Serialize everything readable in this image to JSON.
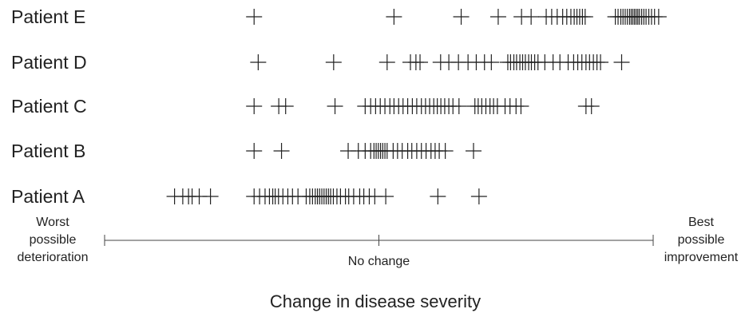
{
  "chart_data": {
    "type": "scatter",
    "xlabel": "Change in disease severity",
    "axis_labels": {
      "left": [
        "Worst",
        "possible",
        "deterioration"
      ],
      "middle": "No change",
      "right": [
        "Best",
        "possible",
        "improvement"
      ]
    },
    "xlim": [
      -1,
      1
    ],
    "marker": "+",
    "colors": {
      "marks": "#222222",
      "axis": "#444444",
      "text": "#222222"
    },
    "series": [
      {
        "name": "Patient A",
        "x": [
          -0.745,
          -0.715,
          -0.694,
          -0.681,
          -0.655,
          -0.614,
          -0.455,
          -0.435,
          -0.415,
          -0.399,
          -0.387,
          -0.378,
          -0.366,
          -0.35,
          -0.332,
          -0.315,
          -0.295,
          -0.265,
          -0.252,
          -0.242,
          -0.232,
          -0.224,
          -0.216,
          -0.208,
          -0.2,
          -0.192,
          -0.184,
          -0.176,
          -0.166,
          -0.153,
          -0.14,
          -0.122,
          -0.11,
          -0.092,
          -0.07,
          -0.055,
          -0.035,
          -0.015,
          0.025,
          0.215,
          0.365
        ]
      },
      {
        "name": "Patient B",
        "x": [
          -0.455,
          -0.355,
          -0.112,
          -0.075,
          -0.05,
          -0.03,
          -0.018,
          -0.01,
          -0.002,
          0.006,
          0.014,
          0.022,
          0.03,
          0.052,
          0.068,
          0.085,
          0.105,
          0.12,
          0.138,
          0.155,
          0.172,
          0.19,
          0.205,
          0.22,
          0.242,
          0.345
        ]
      },
      {
        "name": "Patient C",
        "x": [
          -0.455,
          -0.365,
          -0.34,
          -0.16,
          -0.05,
          -0.03,
          -0.012,
          0.005,
          0.022,
          0.04,
          0.055,
          0.072,
          0.088,
          0.105,
          0.122,
          0.138,
          0.155,
          0.17,
          0.185,
          0.2,
          0.213,
          0.226,
          0.24,
          0.255,
          0.27,
          0.292,
          0.35,
          0.362,
          0.375,
          0.39,
          0.405,
          0.418,
          0.432,
          0.46,
          0.478,
          0.5,
          0.518,
          0.755,
          0.775
        ]
      },
      {
        "name": "Patient D",
        "x": [
          -0.44,
          -0.165,
          0.03,
          0.115,
          0.135,
          0.15,
          0.225,
          0.255,
          0.29,
          0.325,
          0.355,
          0.385,
          0.41,
          0.47,
          0.48,
          0.492,
          0.502,
          0.514,
          0.524,
          0.534,
          0.546,
          0.556,
          0.568,
          0.58,
          0.605,
          0.635,
          0.66,
          0.69,
          0.71,
          0.725,
          0.74,
          0.755,
          0.768,
          0.782,
          0.795,
          0.808,
          0.885
        ]
      },
      {
        "name": "Patient E",
        "x": [
          -0.455,
          0.055,
          0.3,
          0.435,
          0.52,
          0.555,
          0.61,
          0.63,
          0.65,
          0.67,
          0.685,
          0.7,
          0.712,
          0.722,
          0.732,
          0.742,
          0.752,
          0.862,
          0.872,
          0.882,
          0.89,
          0.898,
          0.906,
          0.914,
          0.92,
          0.926,
          0.932,
          0.938,
          0.944,
          0.95,
          0.958,
          0.966,
          0.974,
          0.984,
          0.994,
          1.005,
          1.02
        ]
      }
    ]
  }
}
